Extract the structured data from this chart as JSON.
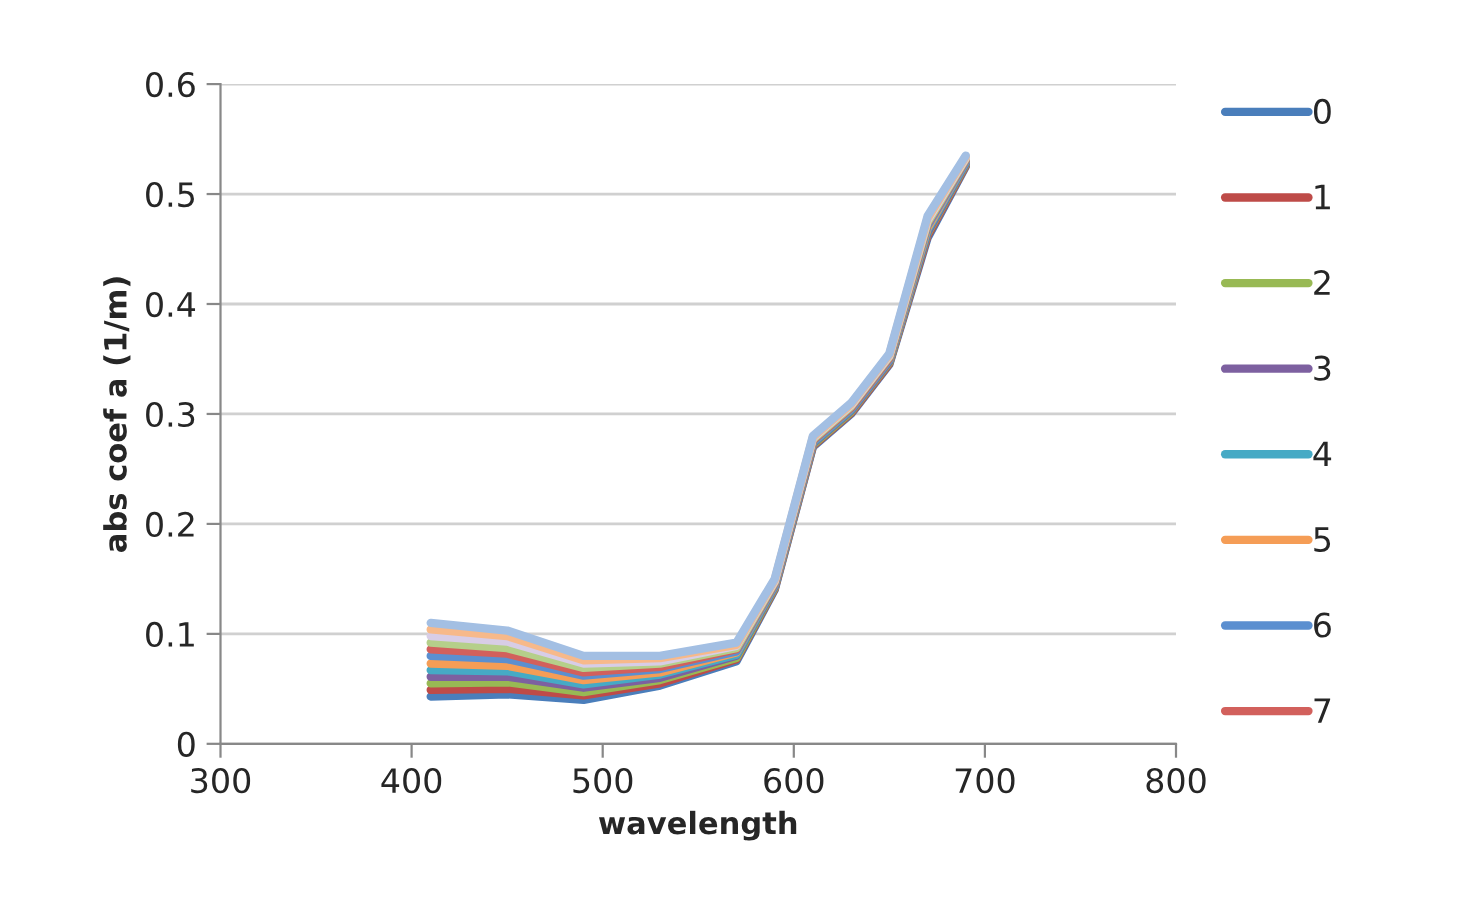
{
  "chart_data": {
    "type": "line",
    "xlabel": "wavelength",
    "ylabel": "abs coef a (1/m)",
    "x": [
      410,
      450,
      490,
      530,
      570,
      590,
      610,
      630,
      650,
      670,
      690
    ],
    "xlim": [
      300,
      800
    ],
    "xticks": [
      300,
      400,
      500,
      600,
      700,
      800
    ],
    "ylim": [
      0,
      0.6
    ],
    "yticks": [
      0,
      0.1,
      0.2,
      0.3,
      0.4,
      0.5,
      0.6
    ],
    "grid": "y",
    "legend": "right",
    "marker": "none",
    "line_style": "solid",
    "series": [
      {
        "name": "0",
        "color": "#4a7ebb",
        "values": [
          0.043,
          0.045,
          0.04,
          0.053,
          0.075,
          0.14,
          0.27,
          0.3,
          0.345,
          0.46,
          0.525
        ]
      },
      {
        "name": "1",
        "color": "#be4b48",
        "values": [
          0.049,
          0.05,
          0.044,
          0.055,
          0.077,
          0.141,
          0.271,
          0.301,
          0.346,
          0.462,
          0.526
        ]
      },
      {
        "name": "2",
        "color": "#98b954",
        "values": [
          0.055,
          0.056,
          0.047,
          0.058,
          0.078,
          0.142,
          0.272,
          0.302,
          0.347,
          0.464,
          0.527
        ]
      },
      {
        "name": "3",
        "color": "#7d60a0",
        "values": [
          0.061,
          0.061,
          0.051,
          0.06,
          0.08,
          0.143,
          0.273,
          0.303,
          0.348,
          0.465,
          0.528
        ]
      },
      {
        "name": "4",
        "color": "#46aac5",
        "values": [
          0.067,
          0.066,
          0.054,
          0.063,
          0.081,
          0.144,
          0.274,
          0.304,
          0.349,
          0.467,
          0.529
        ]
      },
      {
        "name": "5",
        "color": "#f59d56",
        "values": [
          0.073,
          0.071,
          0.058,
          0.065,
          0.083,
          0.145,
          0.275,
          0.305,
          0.35,
          0.469,
          0.53
        ]
      },
      {
        "name": "6",
        "color": "#5b8fd0",
        "values": [
          0.08,
          0.077,
          0.062,
          0.068,
          0.084,
          0.145,
          0.275,
          0.305,
          0.35,
          0.471,
          0.53
        ]
      },
      {
        "name": "7",
        "color": "#d2605c",
        "values": [
          0.086,
          0.082,
          0.065,
          0.07,
          0.086,
          0.146,
          0.276,
          0.306,
          0.351,
          0.473,
          0.531
        ]
      },
      {
        "color": "#b5cf8a",
        "values": [
          0.092,
          0.087,
          0.069,
          0.073,
          0.087,
          0.147,
          0.277,
          0.307,
          0.352,
          0.474,
          0.532
        ]
      },
      {
        "color": "#d8cde6",
        "values": [
          0.098,
          0.093,
          0.073,
          0.075,
          0.089,
          0.148,
          0.278,
          0.308,
          0.353,
          0.476,
          0.533
        ]
      },
      {
        "color": "#f7b98a",
        "values": [
          0.104,
          0.098,
          0.076,
          0.078,
          0.09,
          0.149,
          0.279,
          0.309,
          0.354,
          0.478,
          0.534
        ]
      },
      {
        "color": "#a3bfe3",
        "values": [
          0.11,
          0.103,
          0.08,
          0.08,
          0.092,
          0.15,
          0.28,
          0.31,
          0.355,
          0.48,
          0.535
        ]
      }
    ]
  }
}
